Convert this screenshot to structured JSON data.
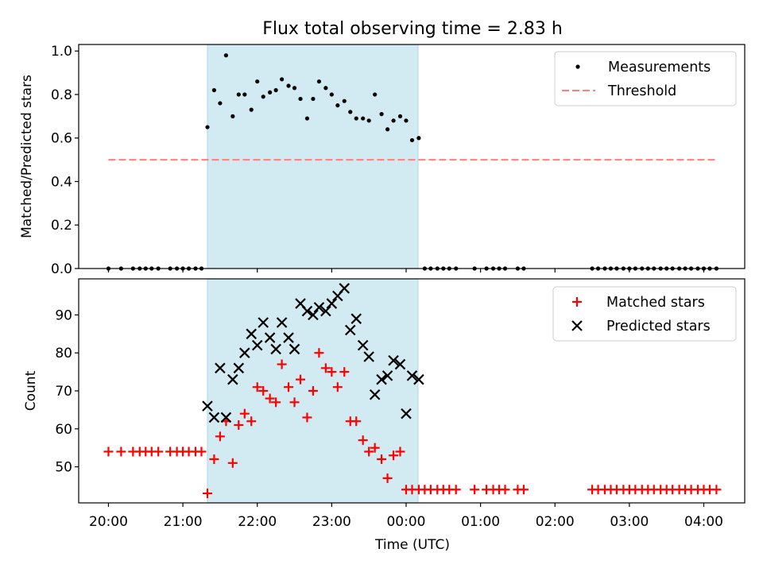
{
  "figure": {
    "title": "Flux total observing time = 2.83 h",
    "shaded_region_color": "#add8e6"
  },
  "chart_data": [
    {
      "type": "scatter",
      "ylabel": "Matched/Predicted stars",
      "xlabel": "",
      "xlim_hours": [
        19.6,
        28.55
      ],
      "ylim": [
        0,
        1.03
      ],
      "y_ticks": [
        "0.0",
        "0.2",
        "0.4",
        "0.6",
        "0.8",
        "1.0"
      ],
      "y_tick_values": [
        0,
        0.2,
        0.4,
        0.6,
        0.8,
        1.0
      ],
      "shaded_x_hours": [
        21.33,
        24.16
      ],
      "legend_position": "top-right",
      "series": [
        {
          "name": "Measurements",
          "marker": "dot",
          "color": "#000000",
          "x": [
            20.0,
            20.17,
            20.33,
            20.42,
            20.5,
            20.58,
            20.67,
            20.83,
            20.92,
            21.0,
            21.08,
            21.17,
            21.25,
            21.33,
            21.42,
            21.5,
            21.58,
            21.67,
            21.75,
            21.83,
            21.92,
            22.0,
            22.08,
            22.17,
            22.25,
            22.33,
            22.42,
            22.5,
            22.58,
            22.67,
            22.75,
            22.83,
            22.92,
            23.0,
            23.08,
            23.17,
            23.25,
            23.33,
            23.42,
            23.5,
            23.58,
            23.67,
            23.75,
            23.83,
            23.92,
            24.0,
            24.08,
            24.17,
            24.25,
            24.33,
            24.42,
            24.5,
            24.58,
            24.67,
            24.92,
            25.08,
            25.17,
            25.25,
            25.33,
            25.5,
            25.58,
            26.5,
            26.58,
            26.67,
            26.75,
            26.83,
            26.92,
            27.0,
            27.08,
            27.17,
            27.25,
            27.33,
            27.42,
            27.5,
            27.58,
            27.67,
            27.75,
            27.83,
            27.92,
            28.0,
            28.08,
            28.17
          ],
          "y": [
            0,
            0,
            0,
            0,
            0,
            0,
            0,
            0,
            0,
            0,
            0,
            0,
            0,
            0.65,
            0.82,
            0.76,
            0.98,
            0.7,
            0.8,
            0.8,
            0.73,
            0.86,
            0.79,
            0.81,
            0.82,
            0.87,
            0.84,
            0.83,
            0.78,
            0.69,
            0.78,
            0.86,
            0.83,
            0.8,
            0.75,
            0.77,
            0.72,
            0.69,
            0.69,
            0.68,
            0.8,
            0.71,
            0.64,
            0.68,
            0.7,
            0.68,
            0.59,
            0.6,
            0,
            0,
            0,
            0,
            0,
            0,
            0,
            0,
            0,
            0,
            0,
            0,
            0,
            0,
            0,
            0,
            0,
            0,
            0,
            0,
            0,
            0,
            0,
            0,
            0,
            0,
            0,
            0,
            0,
            0,
            0,
            0,
            0,
            0
          ]
        },
        {
          "name": "Threshold",
          "marker": "dashed-line",
          "color": "#ff7f7f",
          "x": [
            20.0,
            28.17
          ],
          "y": [
            0.5,
            0.5
          ]
        }
      ]
    },
    {
      "type": "scatter",
      "ylabel": "Count",
      "xlabel": "Time (UTC)",
      "xlim_hours": [
        19.6,
        28.55
      ],
      "ylim": [
        40.5,
        99.5
      ],
      "y_ticks": [
        "50",
        "60",
        "70",
        "80",
        "90"
      ],
      "y_tick_values": [
        50,
        60,
        70,
        80,
        90
      ],
      "x_ticks": [
        "20:00",
        "21:00",
        "22:00",
        "23:00",
        "00:00",
        "01:00",
        "02:00",
        "03:00",
        "04:00"
      ],
      "x_tick_values": [
        20,
        21,
        22,
        23,
        24,
        25,
        26,
        27,
        28
      ],
      "shaded_x_hours": [
        21.33,
        24.16
      ],
      "legend_position": "top-right",
      "series": [
        {
          "name": "Matched stars",
          "marker": "plus",
          "color": "#ff0000",
          "x": [
            20.0,
            20.17,
            20.33,
            20.42,
            20.5,
            20.58,
            20.67,
            20.83,
            20.92,
            21.0,
            21.08,
            21.17,
            21.25,
            21.33,
            21.42,
            21.5,
            21.58,
            21.67,
            21.75,
            21.83,
            21.92,
            22.0,
            22.08,
            22.17,
            22.25,
            22.33,
            22.42,
            22.5,
            22.58,
            22.67,
            22.75,
            22.83,
            22.92,
            23.0,
            23.08,
            23.17,
            23.25,
            23.33,
            23.42,
            23.5,
            23.58,
            23.67,
            23.75,
            23.83,
            23.92,
            24.0,
            24.08,
            24.17,
            24.25,
            24.33,
            24.42,
            24.5,
            24.58,
            24.67,
            24.92,
            25.08,
            25.17,
            25.25,
            25.33,
            25.5,
            25.58,
            26.5,
            26.58,
            26.67,
            26.75,
            26.83,
            26.92,
            27.0,
            27.08,
            27.17,
            27.25,
            27.33,
            27.42,
            27.5,
            27.58,
            27.67,
            27.75,
            27.83,
            27.92,
            28.0,
            28.08,
            28.17
          ],
          "y": [
            54,
            54,
            54,
            54,
            54,
            54,
            54,
            54,
            54,
            54,
            54,
            54,
            54,
            43,
            52,
            58,
            62,
            51,
            61,
            64,
            62,
            71,
            70,
            68,
            67,
            77,
            71,
            67,
            73,
            63,
            70,
            80,
            76,
            75,
            71,
            75,
            62,
            62,
            57,
            54,
            55,
            52,
            47,
            53,
            54,
            44,
            44,
            44,
            44,
            44,
            44,
            44,
            44,
            44,
            44,
            44,
            44,
            44,
            44,
            44,
            44,
            44,
            44,
            44,
            44,
            44,
            44,
            44,
            44,
            44,
            44,
            44,
            44,
            44,
            44,
            44,
            44,
            44,
            44,
            44,
            44,
            44
          ]
        },
        {
          "name": "Predicted stars",
          "marker": "x",
          "color": "#000000",
          "x": [
            21.33,
            21.42,
            21.5,
            21.58,
            21.67,
            21.75,
            21.83,
            21.92,
            22.0,
            22.08,
            22.17,
            22.25,
            22.33,
            22.42,
            22.5,
            22.58,
            22.67,
            22.75,
            22.83,
            22.92,
            23.0,
            23.08,
            23.17,
            23.25,
            23.33,
            23.42,
            23.5,
            23.58,
            23.67,
            23.75,
            23.83,
            23.92,
            24.0,
            24.08,
            24.17
          ],
          "y": [
            66,
            63,
            76,
            63,
            73,
            76,
            80,
            85,
            82,
            88,
            84,
            81,
            88,
            84,
            81,
            93,
            91,
            90,
            92,
            91,
            93,
            95,
            97,
            86,
            89,
            82,
            79,
            69,
            73,
            74,
            78,
            77,
            64,
            74,
            73
          ]
        }
      ]
    }
  ]
}
